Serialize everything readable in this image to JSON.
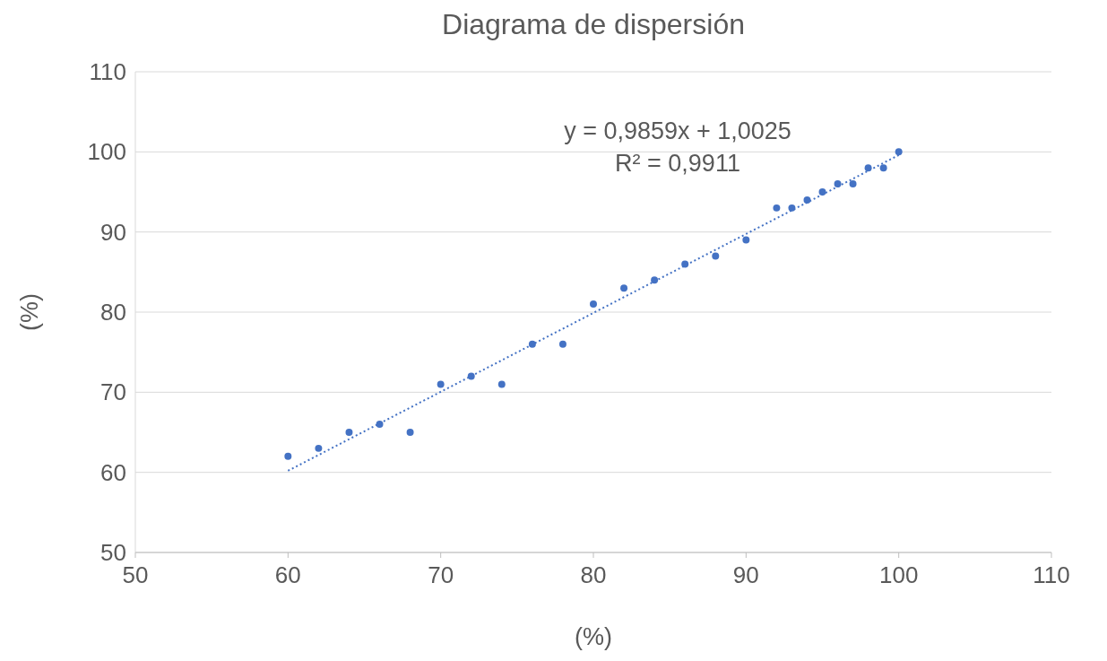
{
  "chart_data": {
    "type": "scatter",
    "title": "Diagrama de dispersión",
    "xlabel": "(%)",
    "ylabel": "(%)",
    "xlim": [
      50,
      110
    ],
    "xticks": [
      50,
      60,
      70,
      80,
      90,
      100,
      110
    ],
    "ylim": [
      50,
      110
    ],
    "yticks": [
      50,
      60,
      70,
      80,
      90,
      100,
      110
    ],
    "grid": "y",
    "marker": "circle",
    "series": [
      {
        "color": "#4472c4",
        "x": [
          60,
          62,
          64,
          66,
          68,
          70,
          72,
          74,
          76,
          78,
          80,
          82,
          84,
          86,
          88,
          90,
          92,
          93,
          94,
          95,
          96,
          97,
          98,
          99,
          100
        ],
        "values": [
          62,
          63,
          65,
          66,
          65,
          71,
          72,
          71,
          76,
          76,
          81,
          83,
          84,
          86,
          87,
          89,
          93,
          93,
          94,
          95,
          96,
          96,
          98,
          98,
          100
        ]
      },
      {
        "type": "line",
        "color": "#4472c4",
        "line_style": "dotted",
        "marker": "none",
        "x": [
          60,
          100
        ],
        "values": [
          60.2,
          99.6
        ]
      }
    ],
    "annotations": [
      "y = 0,9859x + 1,0025",
      "R² = 0,9911"
    ]
  }
}
